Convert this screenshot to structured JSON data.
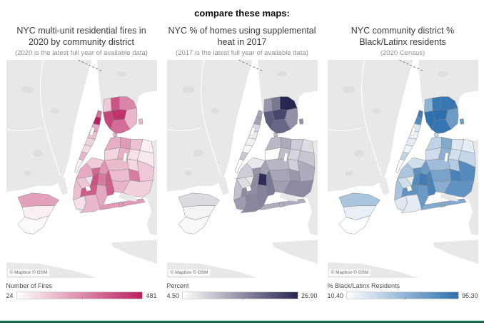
{
  "header": {
    "title": "compare these maps:"
  },
  "attribution": "© Mapbox  © OSM",
  "basemap": {
    "land_color": "#e9e8e8",
    "park_color": "#dfdede",
    "water_color": "#ffffff",
    "district_border_color": "#828282"
  },
  "footer": {
    "divider_color": "#17694e"
  },
  "chart_data": [
    {
      "type": "choropleth",
      "title": "NYC multi-unit residential fires in 2020 by community district",
      "subtitle": "(2020 is the latest full year of available data)",
      "legend": {
        "label": "Number of Fires",
        "min_label": "24",
        "max_label": "481"
      },
      "min": 24,
      "max": 481,
      "color_min": "#ffffff",
      "color_max": "#bb1e5e",
      "values": {
        "man-inwood-washington-heights": 310,
        "man-harlem": 481,
        "man-upper-east-west-sides": 200,
        "man-midtown": 150,
        "man-chelsea-clinton": 120,
        "man-greenwich-village": 95,
        "man-lower-east-side": 175,
        "man-lower-manhattan": 55,
        "bx-riverdale": 130,
        "bx-kingsbridge": 370,
        "bx-williamsbridge": 270,
        "bx-throgs-neck": 170,
        "bx-fordham": 440,
        "bx-soundview": 320,
        "bx-mott-haven": 400,
        "q-astoria": 190,
        "q-long-island-city": 110,
        "q-jackson-heights": 230,
        "q-flushing": 150,
        "q-bayside": 55,
        "q-elmhurst": 185,
        "q-forest-hills": 85,
        "q-fresh-meadows": 70,
        "q-ridgewood": 165,
        "q-kew-gardens": 105,
        "q-woodhaven": 160,
        "q-jamaica": 290,
        "q-queens-village": 135,
        "q-ozone-park": 175,
        "q-southeast-queens": 120,
        "q-rockaway": 230,
        "bk-greenpoint-williamsburg": 130,
        "bk-fort-greene": 195,
        "bk-bushwick": 240,
        "bk-bedford-stuyvesant": 330,
        "bk-east-new-york": 350,
        "bk-brownsville": 295,
        "bk-crown-heights": 375,
        "bk-park-slope": 140,
        "bk-red-hook-sunset-park": 155,
        "bk-flatbush": 355,
        "bk-canarsie-flatlands": 200,
        "bk-bensonhurst-borough-park": 90,
        "bk-sheepshead-bay-coney-island": 170,
        "si-north-shore": 215,
        "si-mid-island": 55,
        "si-south-shore": 35
      }
    },
    {
      "type": "choropleth",
      "title": "NYC % of homes using supplemental heat in 2017",
      "subtitle": "(2017 is the latest full year of available data)",
      "legend": {
        "label": "Percent",
        "min_label": "4.50",
        "max_label": "26.90"
      },
      "min": 4.5,
      "max": 26.9,
      "color_min": "#ffffff",
      "color_max": "#272551",
      "values": {
        "man-inwood-washington-heights": 13.5,
        "man-harlem": 14.2,
        "man-upper-east-west-sides": 8.5,
        "man-midtown": 6.5,
        "man-chelsea-clinton": 6.0,
        "man-greenwich-village": 5.2,
        "man-lower-east-side": 10.1,
        "man-lower-manhattan": 4.5,
        "bx-riverdale": 15.3,
        "bx-kingsbridge": 18.4,
        "bx-williamsbridge": 26.9,
        "bx-throgs-neck": 15.8,
        "bx-fordham": 23.5,
        "bx-soundview": 20.2,
        "bx-mott-haven": 21.4,
        "q-astoria": 11.8,
        "q-long-island-city": 4.6,
        "q-jackson-heights": 13.2,
        "q-flushing": 9.7,
        "q-bayside": 8.1,
        "q-elmhurst": 11.2,
        "q-forest-hills": 8.8,
        "q-fresh-meadows": 10.3,
        "q-ridgewood": 12.1,
        "q-kew-gardens": 9.4,
        "q-woodhaven": 13.6,
        "q-jamaica": 15.2,
        "q-queens-village": 13.1,
        "q-ozone-park": 14.3,
        "q-southeast-queens": 16.4,
        "q-rockaway": 12.8,
        "bk-greenpoint-williamsburg": 6.8,
        "bk-fort-greene": 9.6,
        "bk-bushwick": 14.1,
        "bk-bedford-stuyvesant": 15.4,
        "bk-east-new-york": 18.2,
        "bk-brownsville": 26.1,
        "bk-crown-heights": 16.3,
        "bk-park-slope": 7.9,
        "bk-red-hook-sunset-park": 10.8,
        "bk-flatbush": 16.1,
        "bk-canarsie-flatlands": 17.2,
        "bk-bensonhurst-borough-park": 14.8,
        "bk-sheepshead-bay-coney-island": 16.8,
        "si-north-shore": 8.2,
        "si-mid-island": 5.6,
        "si-south-shore": 5.1
      }
    },
    {
      "type": "choropleth",
      "title": "NYC community district % Black/Latinx residents",
      "subtitle": "(2020 Census)",
      "legend": {
        "label": "% Black/Latinx Residents",
        "min_label": "10.40",
        "max_label": "95.30"
      },
      "min": 10.4,
      "max": 95.3,
      "color_min": "#ffffff",
      "color_max": "#2e70ae",
      "values": {
        "man-inwood-washington-heights": 88.4,
        "man-harlem": 79.6,
        "man-upper-east-west-sides": 24.8,
        "man-midtown": 17.5,
        "man-chelsea-clinton": 21.9,
        "man-greenwich-village": 17.2,
        "man-lower-east-side": 34.6,
        "man-lower-manhattan": 13.8,
        "bx-riverdale": 55.7,
        "bx-kingsbridge": 90.2,
        "bx-williamsbridge": 91.8,
        "bx-throgs-neck": 69.4,
        "bx-fordham": 95.3,
        "bx-soundview": 92.6,
        "bx-mott-haven": 94.8,
        "q-astoria": 36.2,
        "q-long-island-city": 30.5,
        "q-jackson-heights": 61.3,
        "q-flushing": 24.6,
        "q-bayside": 21.4,
        "q-elmhurst": 56.8,
        "q-forest-hills": 28.9,
        "q-fresh-meadows": 34.7,
        "q-ridgewood": 49.6,
        "q-kew-gardens": 41.2,
        "q-woodhaven": 64.8,
        "q-jamaica": 84.6,
        "q-queens-village": 79.2,
        "q-ozone-park": 58.4,
        "q-southeast-queens": 74.6,
        "q-rockaway": 61.7,
        "bk-greenpoint-williamsburg": 29.4,
        "bk-fort-greene": 44.6,
        "bk-bushwick": 69.8,
        "bk-bedford-stuyvesant": 74.9,
        "bk-east-new-york": 84.2,
        "bk-brownsville": 87.6,
        "bk-crown-heights": 79.8,
        "bk-park-slope": 29.7,
        "bk-red-hook-sunset-park": 45.3,
        "bk-flatbush": 74.2,
        "bk-canarsie-flatlands": 70.6,
        "bk-bensonhurst-borough-park": 24.3,
        "bk-sheepshead-bay-coney-island": 21.8,
        "si-north-shore": 44.8,
        "si-mid-island": 19.6,
        "si-south-shore": 10.4
      }
    }
  ]
}
